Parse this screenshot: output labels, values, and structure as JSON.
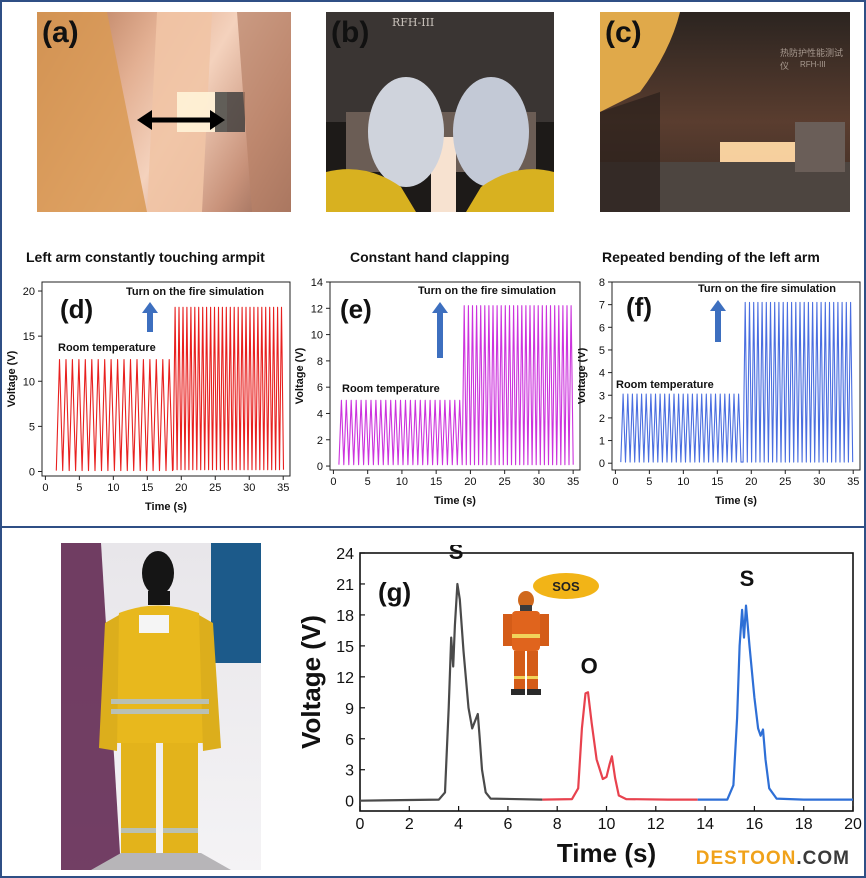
{
  "panels": {
    "a": {
      "label": "(a)",
      "caption": "Left arm constantly touching armpit"
    },
    "b": {
      "label": "(b)",
      "caption": "Constant hand clapping",
      "sign": "RFH-III"
    },
    "c": {
      "label": "(c)",
      "caption": "Repeated bending of the left arm",
      "sign_cn": "热防护性能测试仪",
      "sign": "RFH-III"
    }
  },
  "sos_bubble": "SOS",
  "watermark": {
    "part1": "DESTOON",
    "part2": ".COM"
  },
  "chart_data": [
    {
      "id": "d",
      "type": "line",
      "label": "(d)",
      "color": "#e8201f",
      "xlabel": "Time (s)",
      "ylabel": "Voltage (V)",
      "xlim": [
        -0.5,
        36
      ],
      "ylim": [
        -0.5,
        21
      ],
      "xticks": [
        0,
        5,
        10,
        15,
        20,
        25,
        30,
        35
      ],
      "yticks": [
        0,
        5,
        10,
        15,
        20
      ],
      "annotation_room": "Room temperature",
      "annotation_fire": "Turn on the fire simulation",
      "segments": [
        {
          "start": 1.6,
          "end": 18.5,
          "period": 0.95,
          "low": 0.1,
          "high": 12.4
        },
        {
          "start": 18.8,
          "end": 35.0,
          "period": 0.58,
          "low": 0.2,
          "high": 18.2
        }
      ]
    },
    {
      "id": "e",
      "type": "line",
      "label": "(e)",
      "color": "#cc33dd",
      "xlabel": "Time (s)",
      "ylabel": "Voltage (V)",
      "xlim": [
        -0.5,
        36
      ],
      "ylim": [
        -0.3,
        14
      ],
      "xticks": [
        0,
        5,
        10,
        15,
        20,
        25,
        30,
        35
      ],
      "yticks": [
        0,
        2,
        4,
        6,
        8,
        10,
        12,
        14
      ],
      "annotation_room": "Room temperature",
      "annotation_fire": "Turn on the fire simulation",
      "segments": [
        {
          "start": 0.8,
          "end": 18.5,
          "period": 0.72,
          "low": 0.1,
          "high": 5.0
        },
        {
          "start": 18.8,
          "end": 35.0,
          "period": 0.6,
          "low": 0.1,
          "high": 12.2
        }
      ]
    },
    {
      "id": "f",
      "type": "line",
      "label": "(f)",
      "color": "#4a6ee0",
      "xlabel": "Time (s)",
      "ylabel": "Voltage (V)",
      "xlim": [
        -0.5,
        36
      ],
      "ylim": [
        -0.3,
        8
      ],
      "xticks": [
        0,
        5,
        10,
        15,
        20,
        25,
        30,
        35
      ],
      "yticks": [
        0,
        1,
        2,
        3,
        4,
        5,
        6,
        7,
        8
      ],
      "annotation_room": "Room temperature",
      "annotation_fire": "Turn on the fire simulation",
      "segments": [
        {
          "start": 0.8,
          "end": 18.5,
          "period": 0.68,
          "low": 0.05,
          "high": 3.05
        },
        {
          "start": 18.8,
          "end": 35.0,
          "period": 0.62,
          "low": 0.05,
          "high": 7.1
        }
      ]
    },
    {
      "id": "g",
      "type": "line",
      "label": "(g)",
      "xlabel": "Time (s)",
      "ylabel": "Voltage (V)",
      "xlim": [
        0,
        20
      ],
      "ylim": [
        -1,
        24
      ],
      "xticks": [
        0,
        2,
        4,
        6,
        8,
        10,
        12,
        14,
        16,
        18,
        20
      ],
      "yticks": [
        0,
        3,
        6,
        9,
        12,
        15,
        18,
        21,
        24
      ],
      "letters": [
        {
          "text": "S",
          "x": 3.9,
          "y": 23.4
        },
        {
          "text": "O",
          "x": 9.3,
          "y": 12.3
        },
        {
          "text": "S",
          "x": 15.7,
          "y": 20.8
        }
      ],
      "series": [
        {
          "color": "#4a4a4a",
          "points": [
            [
              0,
              0
            ],
            [
              3.2,
              0.1
            ],
            [
              3.45,
              0.8
            ],
            [
              3.6,
              9
            ],
            [
              3.7,
              15.8
            ],
            [
              3.78,
              13
            ],
            [
              3.85,
              17
            ],
            [
              3.95,
              21
            ],
            [
              4.05,
              19.5
            ],
            [
              4.2,
              14.5
            ],
            [
              4.4,
              9
            ],
            [
              4.55,
              7
            ],
            [
              4.65,
              7.6
            ],
            [
              4.78,
              8.4
            ],
            [
              4.85,
              6.2
            ],
            [
              4.95,
              3
            ],
            [
              5.1,
              0.8
            ],
            [
              5.3,
              0.2
            ],
            [
              7.4,
              0.1
            ]
          ]
        },
        {
          "color": "#e8424e",
          "points": [
            [
              7.4,
              0.1
            ],
            [
              8.6,
              0.15
            ],
            [
              8.85,
              1.2
            ],
            [
              9.0,
              7
            ],
            [
              9.15,
              10.4
            ],
            [
              9.25,
              10.5
            ],
            [
              9.4,
              7.5
            ],
            [
              9.6,
              4
            ],
            [
              9.85,
              2.1
            ],
            [
              10.0,
              2.3
            ],
            [
              10.12,
              3.5
            ],
            [
              10.22,
              4.3
            ],
            [
              10.35,
              2.2
            ],
            [
              10.5,
              0.5
            ],
            [
              10.8,
              0.15
            ],
            [
              12.5,
              0.1
            ],
            [
              13.7,
              0.1
            ]
          ]
        },
        {
          "color": "#2e6fd6",
          "points": [
            [
              13.7,
              0.1
            ],
            [
              14.9,
              0.1
            ],
            [
              15.15,
              1.5
            ],
            [
              15.3,
              8
            ],
            [
              15.4,
              15
            ],
            [
              15.5,
              18.5
            ],
            [
              15.58,
              15.8
            ],
            [
              15.66,
              18.9
            ],
            [
              15.8,
              15
            ],
            [
              16.0,
              10
            ],
            [
              16.15,
              7
            ],
            [
              16.25,
              6.3
            ],
            [
              16.35,
              6.9
            ],
            [
              16.45,
              4
            ],
            [
              16.6,
              1.2
            ],
            [
              16.9,
              0.2
            ],
            [
              18,
              0.1
            ],
            [
              20,
              0.1
            ]
          ]
        }
      ]
    }
  ]
}
